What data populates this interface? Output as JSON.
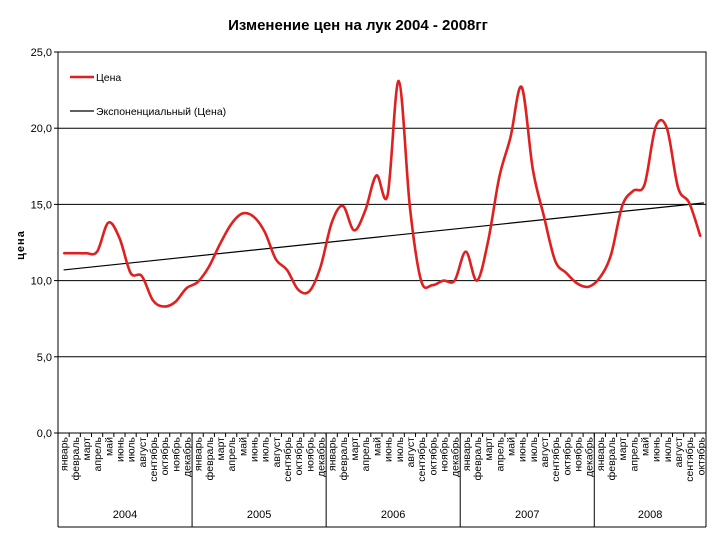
{
  "chart_data": {
    "type": "line",
    "title": "Изменение цен на лук 2004 - 2008гг",
    "ylabel": "цена",
    "xlabel": "",
    "ylim": [
      0,
      25
    ],
    "yticks": [
      "0,0",
      "5,0",
      "10,0",
      "15,0",
      "20,0",
      "25,0"
    ],
    "ytick_values": [
      0,
      5,
      10,
      15,
      20,
      25
    ],
    "grid": true,
    "legend_position": "top-left",
    "months": [
      "январь",
      "февраль",
      "март",
      "апрель",
      "май",
      "июнь",
      "июль",
      "август",
      "сентябрь",
      "октябрь",
      "ноябрь",
      "декабрь"
    ],
    "years": [
      "2004",
      "2005",
      "2006",
      "2007",
      "2008"
    ],
    "month_count": 58,
    "series": [
      {
        "name": "Цена",
        "color": "#e02020",
        "values": [
          11.8,
          11.8,
          11.8,
          11.9,
          13.8,
          12.8,
          10.5,
          10.3,
          8.7,
          8.3,
          8.6,
          9.5,
          9.9,
          10.9,
          12.4,
          13.7,
          14.4,
          14.2,
          13.2,
          11.4,
          10.7,
          9.4,
          9.3,
          10.9,
          13.8,
          14.9,
          13.3,
          14.6,
          16.9,
          15.6,
          23.1,
          14.8,
          10.0,
          9.7,
          10.0,
          10.0,
          11.9,
          10.0,
          12.6,
          16.8,
          19.4,
          22.7,
          17.3,
          14.2,
          11.3,
          10.5,
          9.8,
          9.6,
          10.2,
          11.7,
          14.9,
          15.9,
          16.3,
          20.1,
          20.0,
          16.1,
          15.1,
          12.9
        ]
      },
      {
        "name": "Экспоненциальный (Цена)",
        "color": "#000000",
        "trend": true,
        "values": [
          10.7,
          15.1
        ]
      }
    ]
  }
}
